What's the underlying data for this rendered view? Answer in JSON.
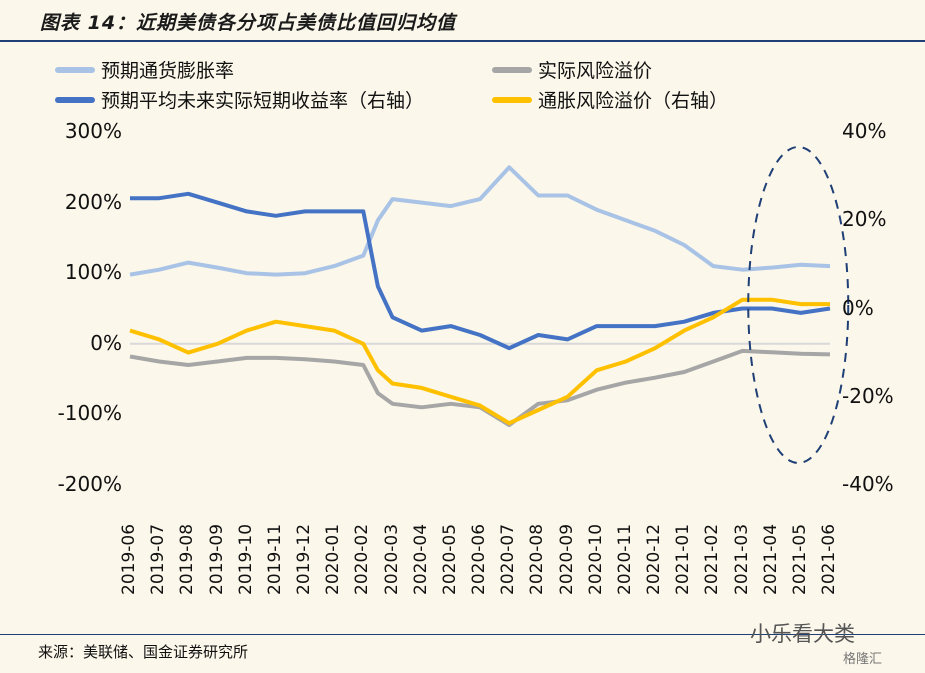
{
  "title": "图表 14：近期美债各分项占美债比值回归均值",
  "legend": [
    {
      "label": "预期通货膨胀率",
      "color": "#a9c3e6"
    },
    {
      "label": "实际风险溢价",
      "color": "#a6a6a6"
    },
    {
      "label": "预期平均未来实际短期收益率（右轴）",
      "color": "#4472c4"
    },
    {
      "label": "通胀风险溢价（右轴）",
      "color": "#ffc000"
    }
  ],
  "source": "来源：美联储、国金证券研究所",
  "watermark": "小乐看大类",
  "watermark2": "格隆汇",
  "chart_data": {
    "type": "line",
    "title": "",
    "x_ticks": [
      "2019-06",
      "2019-07",
      "2019-08",
      "2019-09",
      "2019-10",
      "2019-11",
      "2019-12",
      "2020-01",
      "2020-02",
      "2020-03",
      "2020-04",
      "2020-05",
      "2020-06",
      "2020-07",
      "2020-08",
      "2020-09",
      "2020-10",
      "2020-11",
      "2020-12",
      "2021-01",
      "2021-02",
      "2021-03",
      "2021-04",
      "2021-05",
      "2021-06"
    ],
    "y_left_ticks": [
      "300%",
      "200%",
      "100%",
      "0%",
      "-100%",
      "-200%"
    ],
    "y_right_ticks": [
      "40%",
      "20%",
      "0%",
      "-20%",
      "-40%"
    ],
    "ylim_left": [
      -200,
      300
    ],
    "ylim_right": [
      -40,
      40
    ],
    "series": [
      {
        "name": "预期通货膨胀率",
        "axis": "left",
        "color": "#a9c3e6",
        "x": [
          "2019-06",
          "2019-07",
          "2019-08",
          "2019-09",
          "2019-10",
          "2019-11",
          "2019-12",
          "2020-01",
          "2020-02",
          "2020-02-15",
          "2020-03",
          "2020-04",
          "2020-05",
          "2020-06",
          "2020-07",
          "2020-08",
          "2020-09",
          "2020-10",
          "2020-11",
          "2020-12",
          "2021-01",
          "2021-02",
          "2021-03",
          "2021-04",
          "2021-05",
          "2021-06"
        ],
        "values": [
          98,
          105,
          115,
          108,
          100,
          98,
          100,
          110,
          125,
          175,
          205,
          200,
          195,
          205,
          250,
          210,
          210,
          190,
          175,
          160,
          140,
          110,
          105,
          108,
          112,
          110
        ]
      },
      {
        "name": "实际风险溢价",
        "axis": "left",
        "color": "#a6a6a6",
        "x": [
          "2019-06",
          "2019-07",
          "2019-08",
          "2019-09",
          "2019-10",
          "2019-11",
          "2019-12",
          "2020-01",
          "2020-02",
          "2020-02-15",
          "2020-03",
          "2020-04",
          "2020-05",
          "2020-06",
          "2020-07",
          "2020-08",
          "2020-09",
          "2020-10",
          "2020-11",
          "2020-12",
          "2021-01",
          "2021-02",
          "2021-03",
          "2021-04",
          "2021-05",
          "2021-06"
        ],
        "values": [
          -18,
          -25,
          -30,
          -25,
          -20,
          -20,
          -22,
          -25,
          -30,
          -70,
          -85,
          -90,
          -85,
          -90,
          -115,
          -85,
          -80,
          -65,
          -55,
          -48,
          -40,
          -25,
          -10,
          -12,
          -14,
          -15
        ]
      },
      {
        "name": "预期平均未来实际短期收益率（右轴）",
        "axis": "right",
        "color": "#4472c4",
        "x": [
          "2019-06",
          "2019-07",
          "2019-08",
          "2019-09",
          "2019-10",
          "2019-11",
          "2019-12",
          "2020-01",
          "2020-02",
          "2020-02-15",
          "2020-03",
          "2020-04",
          "2020-05",
          "2020-06",
          "2020-07",
          "2020-08",
          "2020-09",
          "2020-10",
          "2020-11",
          "2020-12",
          "2021-01",
          "2021-02",
          "2021-03",
          "2021-04",
          "2021-05",
          "2021-06"
        ],
        "values": [
          25,
          25,
          26,
          24,
          22,
          21,
          22,
          22,
          22,
          5,
          -2,
          -5,
          -4,
          -6,
          -9,
          -6,
          -7,
          -4,
          -4,
          -4,
          -3,
          -1,
          0,
          0,
          -1,
          0
        ]
      },
      {
        "name": "通胀风险溢价（右轴）",
        "axis": "right",
        "color": "#ffc000",
        "x": [
          "2019-06",
          "2019-07",
          "2019-08",
          "2019-09",
          "2019-10",
          "2019-11",
          "2019-12",
          "2020-01",
          "2020-02",
          "2020-02-15",
          "2020-03",
          "2020-04",
          "2020-05",
          "2020-06",
          "2020-07",
          "2020-08",
          "2020-09",
          "2020-10",
          "2020-11",
          "2020-12",
          "2021-01",
          "2021-02",
          "2021-03",
          "2021-04",
          "2021-05",
          "2021-06"
        ],
        "values": [
          -5,
          -7,
          -10,
          -8,
          -5,
          -3,
          -4,
          -5,
          -8,
          -14,
          -17,
          -18,
          -20,
          -22,
          -26,
          -23,
          -20,
          -14,
          -12,
          -9,
          -5,
          -2,
          2,
          2,
          1,
          1
        ]
      }
    ]
  }
}
